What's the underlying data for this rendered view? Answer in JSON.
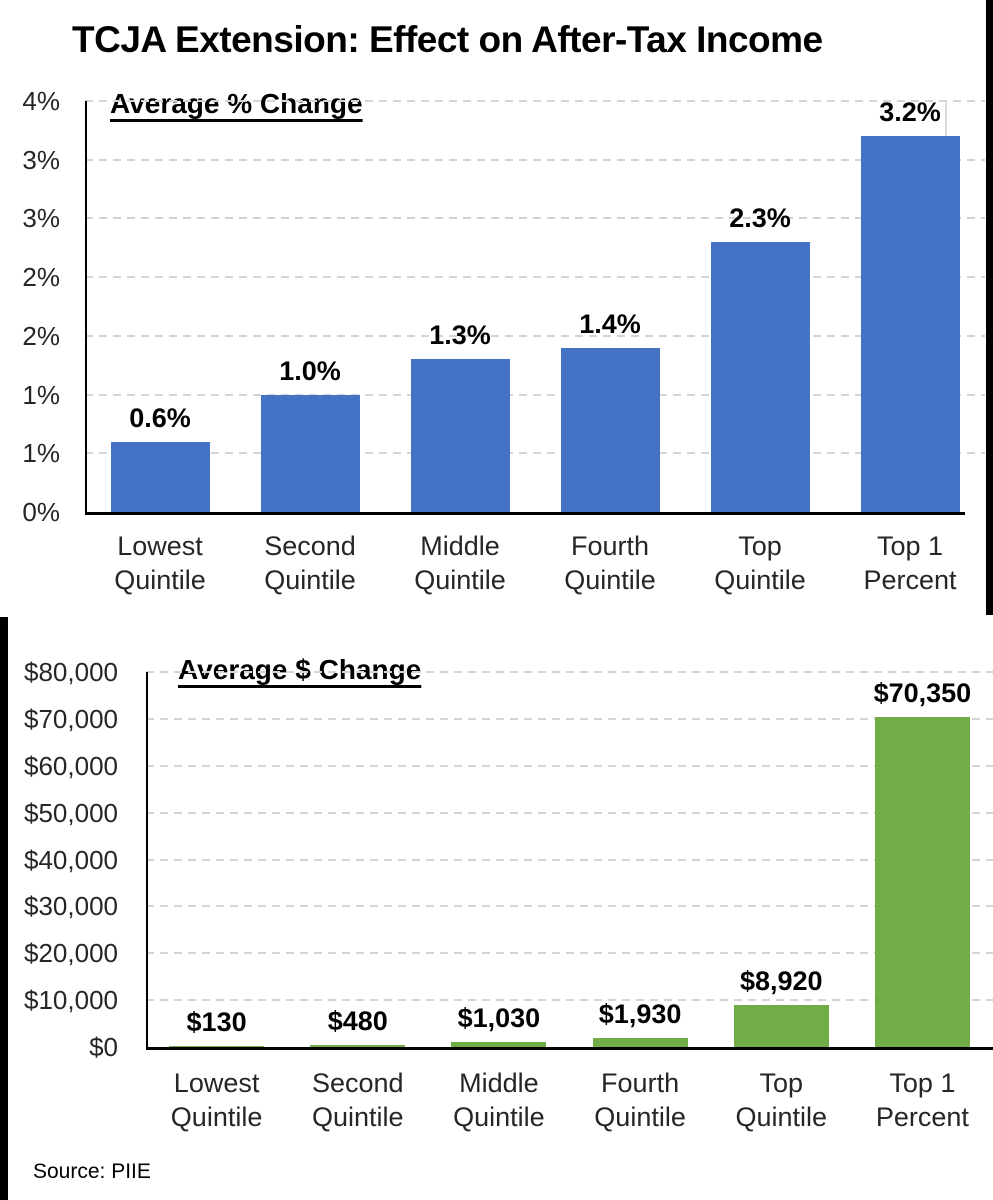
{
  "page": {
    "title": "TCJA Extension: Effect on After-Tax Income",
    "source": "Source: PIIE",
    "colors": {
      "bar_blue": "#4472C4",
      "bar_green": "#70AD47",
      "gridline": "#D4D4D4",
      "axis": "#000000"
    }
  },
  "chart_data": [
    {
      "type": "bar",
      "title": "Average % Change",
      "categories": [
        "Lowest Quintile",
        "Second Quintile",
        "Middle Quintile",
        "Fourth Quintile",
        "Top Quintile",
        "Top 1 Percent"
      ],
      "values": [
        0.6,
        1.0,
        1.3,
        1.4,
        2.3,
        3.2
      ],
      "value_labels": [
        "0.6%",
        "1.0%",
        "1.3%",
        "1.4%",
        "2.3%",
        "3.2%"
      ],
      "bar_color": "#4472C4",
      "ylim": [
        0,
        3.5
      ],
      "ytick_step": 0.5,
      "ytick_labels_bottom_to_top": [
        "0%",
        "1%",
        "1%",
        "2%",
        "2%",
        "3%",
        "3%",
        "4%"
      ],
      "grid": "horizontal-dashed",
      "legend": "none"
    },
    {
      "type": "bar",
      "title": "Average $ Change",
      "categories": [
        "Lowest Quintile",
        "Second Quintile",
        "Middle Quintile",
        "Fourth Quintile",
        "Top Quintile",
        "Top 1 Percent"
      ],
      "values": [
        130,
        480,
        1030,
        1930,
        8920,
        70350
      ],
      "value_labels": [
        "$130",
        "$480",
        "$1,030",
        "$1,930",
        "$8,920",
        "$70,350"
      ],
      "bar_color": "#70AD47",
      "ylim": [
        0,
        80000
      ],
      "ytick_step": 10000,
      "ytick_labels_bottom_to_top": [
        "$0",
        "$10,000",
        "$20,000",
        "$30,000",
        "$40,000",
        "$50,000",
        "$60,000",
        "$70,000",
        "$80,000"
      ],
      "grid": "horizontal-dashed",
      "legend": "none"
    }
  ]
}
